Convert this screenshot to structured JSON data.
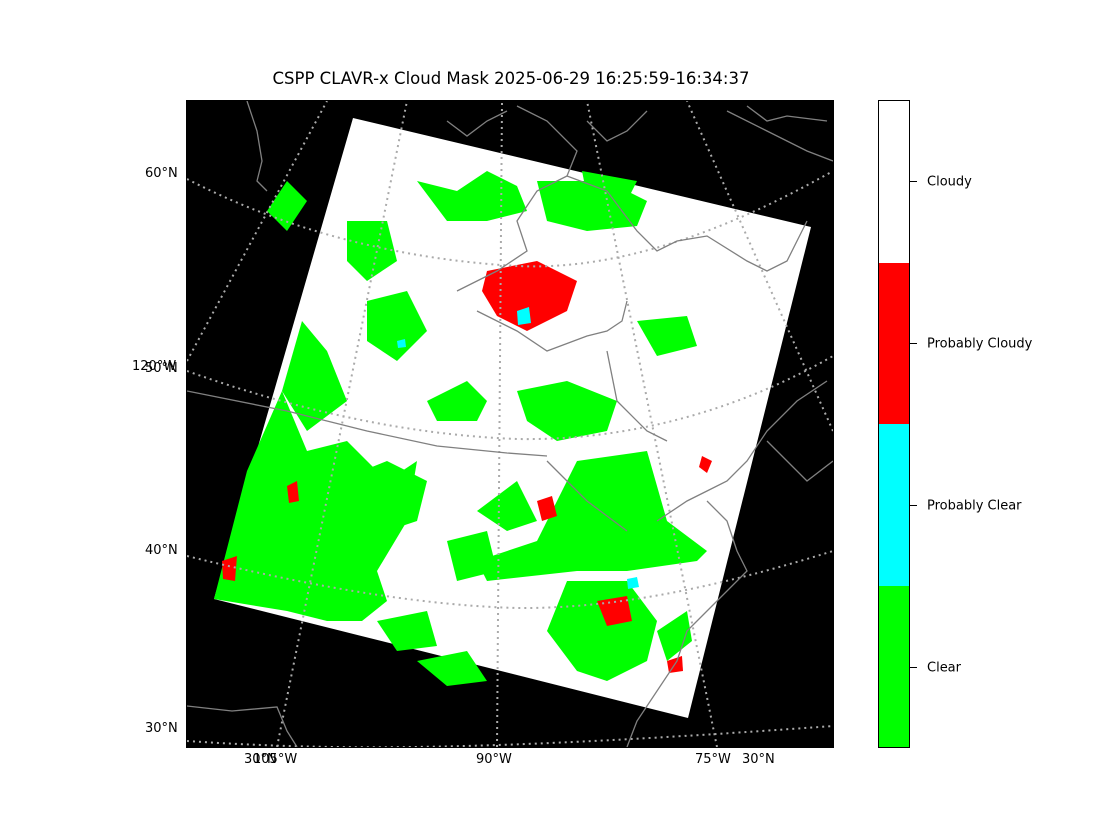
{
  "title": "CSPP CLAVR-x Cloud Mask 2025-06-29 16:25:59-16:34:37",
  "map": {
    "projection": "lambert-conformal",
    "background_color": "#000000",
    "coastline_color": "#808080",
    "gridline_color": "#aaaaaa",
    "region": "Central and Eastern North America / Hudson Bay / Great Lakes",
    "lat_labels": [
      "60°N",
      "50°N",
      "40°N",
      "30°N"
    ],
    "lon_labels_left": [
      "120°W"
    ],
    "lon_labels_bottom": [
      "105°W",
      "90°W",
      "75°W"
    ],
    "overlap_label_bottom_left": "30°N",
    "overlap_label_bottom_right": "30°N"
  },
  "legend": {
    "categories": [
      {
        "label": "Cloudy",
        "color": "#ffffff"
      },
      {
        "label": "Probably Cloudy",
        "color": "#ff0000"
      },
      {
        "label": "Probably Clear",
        "color": "#00ffff"
      },
      {
        "label": "Clear",
        "color": "#00ff00"
      }
    ]
  }
}
